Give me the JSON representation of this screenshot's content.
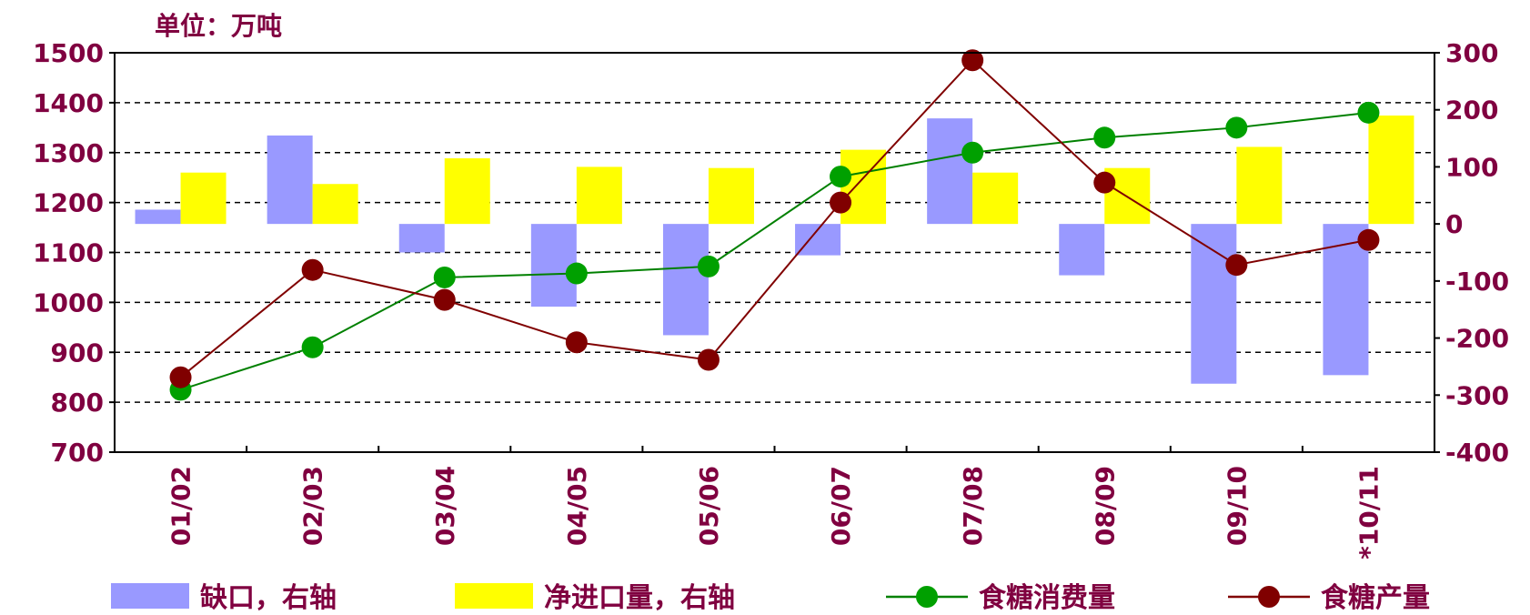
{
  "colors": {
    "text": "#800040",
    "gap": "#9999FF",
    "imports": "#FFFF00",
    "consumption": "#008000",
    "consumption_marker": "#00A000",
    "production": "#800000",
    "grid": "#000000"
  },
  "chart_data": {
    "type": "bar+line",
    "unit_label": "单位：万吨",
    "categories": [
      "01/02",
      "02/03",
      "03/04",
      "04/05",
      "05/06",
      "06/07",
      "07/08",
      "08/09",
      "09/10",
      "*10/11"
    ],
    "left_axis": {
      "ylim": [
        700,
        1500
      ],
      "ticks": [
        1500,
        1400,
        1300,
        1200,
        1100,
        1000,
        900,
        800,
        700
      ]
    },
    "right_axis": {
      "ylim": [
        -400,
        300
      ],
      "ticks": [
        300,
        200,
        100,
        0,
        -100,
        -200,
        -300,
        -400
      ]
    },
    "grid": "horizontal dashed",
    "legend_position": "bottom",
    "series": [
      {
        "name": "缺口，右轴",
        "type": "bar",
        "axis": "right",
        "values": [
          25,
          155,
          -50,
          -145,
          -195,
          -55,
          185,
          -90,
          -280,
          -265
        ]
      },
      {
        "name": "净进口量，右轴",
        "type": "bar",
        "axis": "right",
        "values": [
          90,
          70,
          115,
          100,
          98,
          130,
          90,
          98,
          135,
          190
        ]
      },
      {
        "name": "食糖消费量",
        "type": "line",
        "axis": "left",
        "values": [
          825,
          910,
          1050,
          1058,
          1072,
          1252,
          1300,
          1330,
          1350,
          1380
        ]
      },
      {
        "name": "食糖产量",
        "type": "line",
        "axis": "left",
        "values": [
          850,
          1065,
          1005,
          920,
          885,
          1200,
          1485,
          1240,
          1075,
          1125
        ]
      }
    ]
  }
}
